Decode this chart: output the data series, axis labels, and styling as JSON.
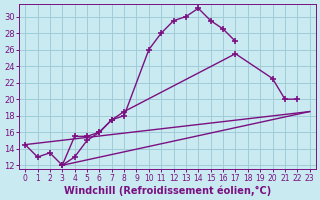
{
  "background_color": "#c8eaf0",
  "grid_color": "#a0ccd8",
  "line_color": "#7b1082",
  "marker": "+",
  "markersize": 5,
  "linewidth": 1.0,
  "xlabel": "Windchill (Refroidissement éolien,°C)",
  "xlabel_fontsize": 7.0,
  "yticks": [
    12,
    14,
    16,
    18,
    20,
    22,
    24,
    26,
    28,
    30
  ],
  "xticks": [
    0,
    1,
    2,
    3,
    4,
    5,
    6,
    7,
    8,
    9,
    10,
    11,
    12,
    13,
    14,
    15,
    16,
    17,
    18,
    19,
    20,
    21,
    22,
    23
  ],
  "ylim": [
    11.5,
    31.5
  ],
  "xlim": [
    -0.5,
    23.5
  ],
  "s1x": [
    0,
    1,
    2,
    3,
    4,
    5,
    6,
    7,
    8,
    10,
    11,
    12,
    13,
    14,
    15,
    16,
    17
  ],
  "s1y": [
    14.5,
    13.0,
    13.5,
    12.0,
    15.5,
    15.5,
    16.0,
    17.5,
    18.0,
    26.0,
    28.0,
    29.5,
    30.0,
    31.0,
    29.5,
    28.5,
    27.0
  ],
  "s2x": [
    3,
    4,
    5,
    6,
    7,
    8,
    17,
    20,
    21,
    22
  ],
  "s2y": [
    12.0,
    13.0,
    15.0,
    16.0,
    17.5,
    18.5,
    25.5,
    22.5,
    20.0,
    20.0
  ],
  "s3x": [
    0,
    23
  ],
  "s3y": [
    14.5,
    18.5
  ],
  "s4x": [
    3,
    23
  ],
  "s4y": [
    12.0,
    18.5
  ]
}
